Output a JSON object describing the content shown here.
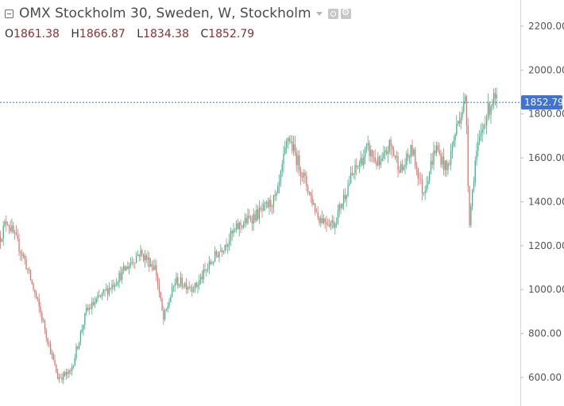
{
  "header": {
    "title": "OMX Stockholm 30, Sweden, W, Stockholm",
    "ohlc": [
      {
        "key": "O",
        "value": "1861.38"
      },
      {
        "key": "H",
        "value": "1866.87"
      },
      {
        "key": "L",
        "value": "1834.38"
      },
      {
        "key": "C",
        "value": "1852.79"
      }
    ]
  },
  "colors": {
    "up": "#3fb58a",
    "down": "#e0736d",
    "price_tag": "#3e72d6",
    "price_line": "#4d6f99",
    "grid": "#e6e6e6",
    "axis_text": "#555555"
  },
  "chart_data": {
    "type": "candlestick",
    "title": "OMX Stockholm 30, Sweden, W, Stockholm",
    "y_axis": {
      "side": "right",
      "ticks": [
        "600.00",
        "800.00",
        "1000.00",
        "1200.00",
        "1400.00",
        "1600.00",
        "1800.00",
        "2000.00",
        "2200.00"
      ],
      "range": [
        500,
        2380
      ]
    },
    "last_price": "1852.79",
    "grid": false,
    "trend_points": [
      [
        0,
        1240
      ],
      [
        8,
        1320
      ],
      [
        30,
        1140
      ],
      [
        50,
        900
      ],
      [
        72,
        600
      ],
      [
        88,
        620
      ],
      [
        108,
        900
      ],
      [
        140,
        1020
      ],
      [
        175,
        1170
      ],
      [
        195,
        1100
      ],
      [
        205,
        860
      ],
      [
        220,
        1040
      ],
      [
        245,
        1010
      ],
      [
        270,
        1150
      ],
      [
        300,
        1290
      ],
      [
        330,
        1360
      ],
      [
        348,
        1420
      ],
      [
        362,
        1700
      ],
      [
        385,
        1480
      ],
      [
        400,
        1330
      ],
      [
        420,
        1300
      ],
      [
        440,
        1500
      ],
      [
        462,
        1640
      ],
      [
        478,
        1560
      ],
      [
        490,
        1660
      ],
      [
        505,
        1540
      ],
      [
        518,
        1640
      ],
      [
        532,
        1440
      ],
      [
        548,
        1650
      ],
      [
        562,
        1540
      ],
      [
        576,
        1770
      ],
      [
        586,
        1870
      ],
      [
        590,
        1300
      ],
      [
        598,
        1600
      ],
      [
        610,
        1780
      ],
      [
        620,
        1870
      ],
      [
        625,
        1855
      ]
    ]
  }
}
